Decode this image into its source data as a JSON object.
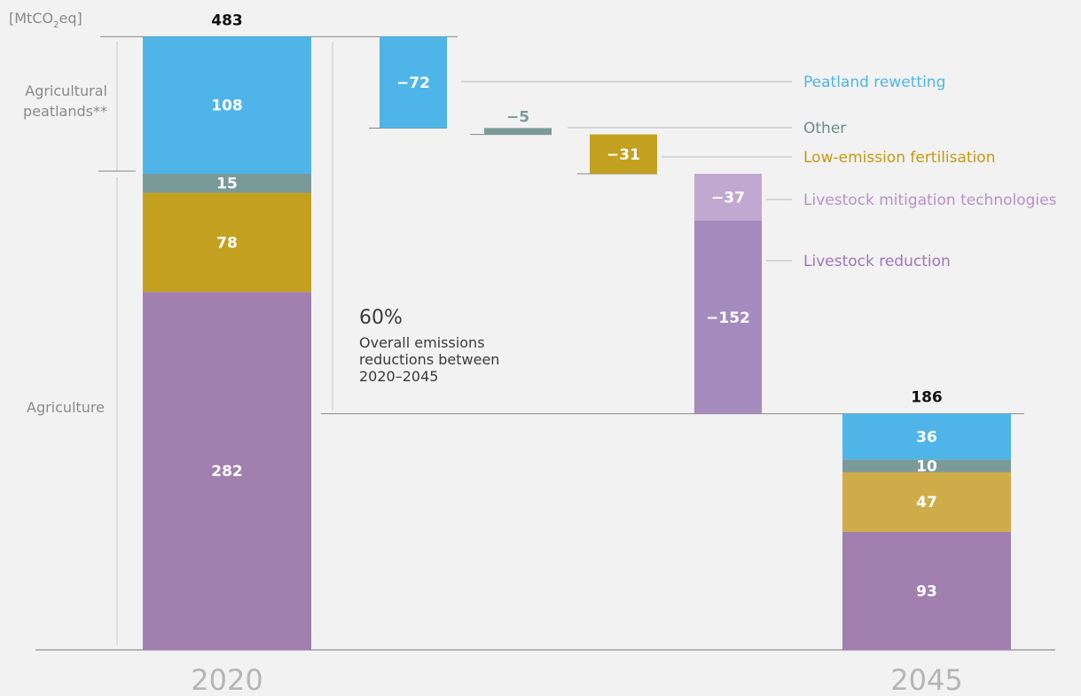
{
  "chart_data": {
    "type": "bar",
    "subtype": "waterfall",
    "unit_label_parts": [
      "[MtCO",
      "2",
      "eq]"
    ],
    "years": [
      "2020",
      "2045"
    ],
    "totals": {
      "2020": 483,
      "2045": 186
    },
    "stacks": {
      "2020": [
        {
          "name": "Livestock",
          "value": 282,
          "color": "#a17fae"
        },
        {
          "name": "Fertilisation",
          "value": 78,
          "color": "#c4a020"
        },
        {
          "name": "Other",
          "value": 15,
          "color": "#7a9a98"
        },
        {
          "name": "Peatland",
          "value": 108,
          "color": "#4fb5e8"
        }
      ],
      "2045": [
        {
          "name": "Livestock",
          "value": 93,
          "color": "#a17fae"
        },
        {
          "name": "Fertilisation",
          "value": 47,
          "color": "#cfab4a"
        },
        {
          "name": "Other",
          "value": 10,
          "color": "#7a9a98"
        },
        {
          "name": "Peatland",
          "value": 36,
          "color": "#4fb5e8"
        }
      ]
    },
    "steps": [
      {
        "label": "Peatland rewetting",
        "value": -72,
        "value_text": "−72",
        "color": "#4fb5e8",
        "label_color": "#4fb5e8"
      },
      {
        "label": "Other",
        "value": -5,
        "value_text": "−5",
        "color": "#7a9a98",
        "label_color": "#6b8c8a"
      },
      {
        "label": "Low-emission fertilisation",
        "value": -31,
        "value_text": "−31",
        "color": "#c4a020",
        "label_color": "#c49a10"
      },
      {
        "label": "Livestock mitigation technologies",
        "value": -37,
        "value_text": "−37",
        "color": "#c1a8d0",
        "label_color": "#b98fcc"
      },
      {
        "label": "Livestock reduction",
        "value": -152,
        "value_text": "−152",
        "color": "#a58bbd",
        "label_color": "#a273bd"
      }
    ],
    "side_labels": [
      "Agricultural",
      "peatlands**",
      "Agriculture"
    ],
    "annotation": {
      "percent": "60%",
      "lines": [
        "Overall emissions",
        "reductions between",
        "2020–2045"
      ]
    }
  }
}
